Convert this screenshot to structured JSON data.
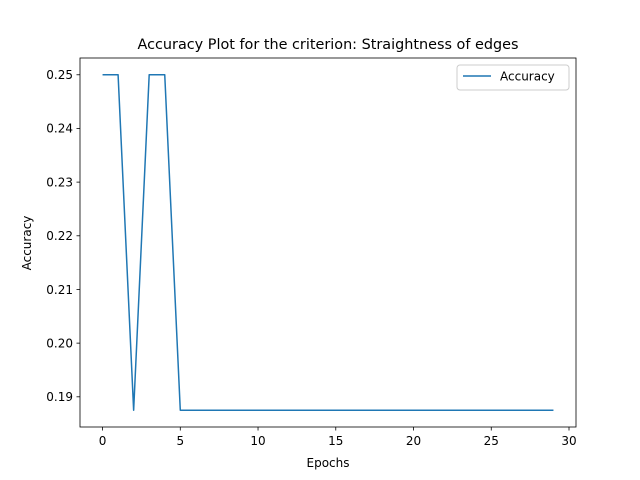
{
  "chart_data": {
    "type": "line",
    "title": "Accuracy Plot for the criterion: Straightness of edges",
    "xlabel": "Epochs",
    "ylabel": "Accuracy",
    "xlim": [
      -1.45,
      30.45
    ],
    "ylim": [
      0.184375,
      0.253125
    ],
    "xticks": [
      0,
      5,
      10,
      15,
      20,
      25,
      30
    ],
    "yticks": [
      0.19,
      0.2,
      0.21,
      0.22,
      0.23,
      0.24,
      0.25
    ],
    "ytick_labels": [
      "0.19",
      "0.20",
      "0.21",
      "0.22",
      "0.23",
      "0.24",
      "0.25"
    ],
    "grid": false,
    "legend_position": "top-right",
    "series": [
      {
        "name": "Accuracy",
        "color": "#1f77b4",
        "x": [
          0,
          1,
          2,
          3,
          4,
          5,
          6,
          7,
          8,
          9,
          10,
          11,
          12,
          13,
          14,
          15,
          16,
          17,
          18,
          19,
          20,
          21,
          22,
          23,
          24,
          25,
          26,
          27,
          28,
          29
        ],
        "y": [
          0.25,
          0.25,
          0.1875,
          0.25,
          0.25,
          0.1875,
          0.1875,
          0.1875,
          0.1875,
          0.1875,
          0.1875,
          0.1875,
          0.1875,
          0.1875,
          0.1875,
          0.1875,
          0.1875,
          0.1875,
          0.1875,
          0.1875,
          0.1875,
          0.1875,
          0.1875,
          0.1875,
          0.1875,
          0.1875,
          0.1875,
          0.1875,
          0.1875,
          0.1875
        ]
      }
    ]
  }
}
